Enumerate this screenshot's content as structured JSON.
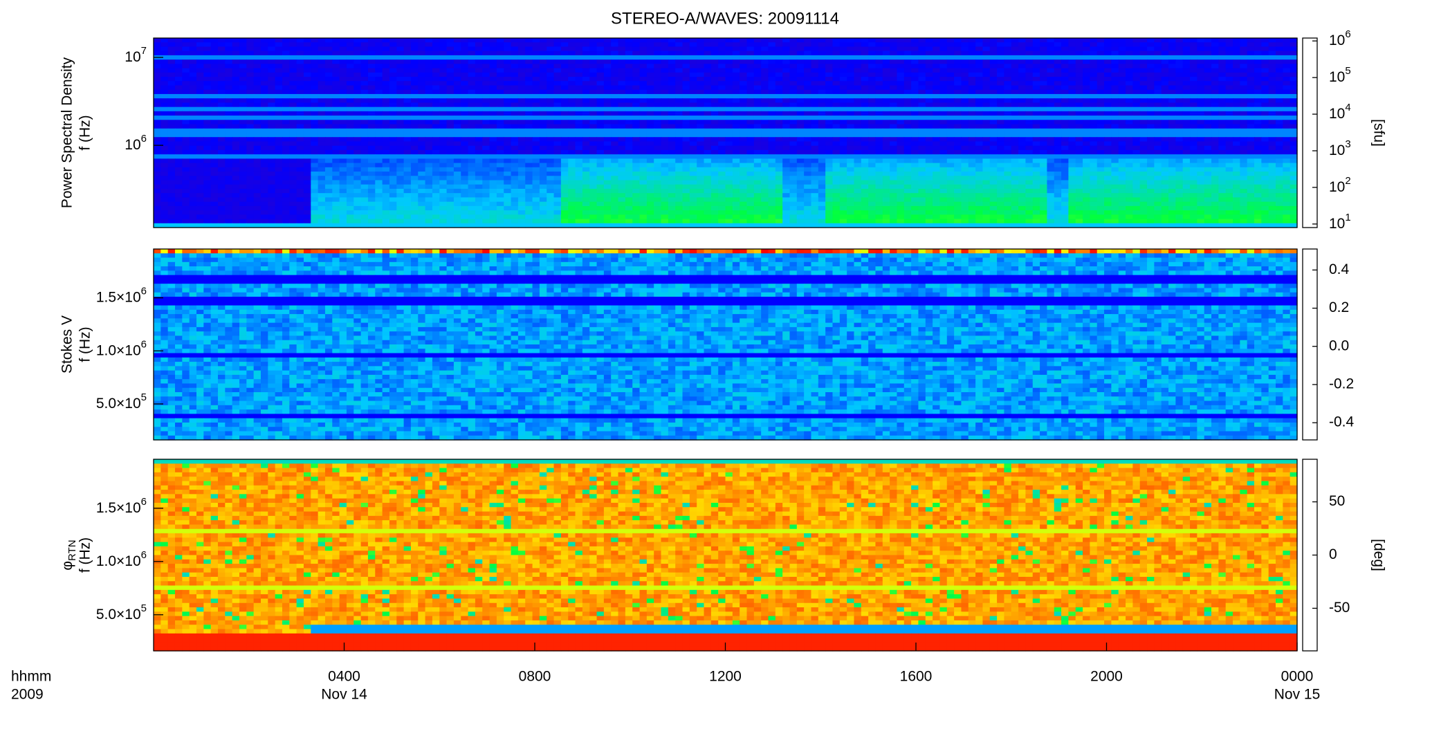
{
  "chart_data": [
    {
      "type": "heatmap",
      "title": "STEREO-A/WAVES: 20091114",
      "ylabel": [
        "Power Spectral Density",
        "f (Hz)"
      ],
      "ylog": true,
      "ylim": [
        116000,
        16600000
      ],
      "yticks": [
        {
          "value": 1000000,
          "label": "10^6"
        },
        {
          "value": 10000000,
          "label": "10^7"
        }
      ],
      "xlim": [
        0,
        24
      ],
      "colormap": "rainbow",
      "colorbar": {
        "label": "[sfu]",
        "log": true,
        "lim": [
          8,
          1200000
        ],
        "ticks": [
          {
            "value": 10,
            "label": "10^1"
          },
          {
            "value": 100,
            "label": "10^2"
          },
          {
            "value": 1000,
            "label": "10^3"
          },
          {
            "value": 10000,
            "label": "10^4"
          },
          {
            "value": 100000,
            "label": "10^5"
          },
          {
            "value": 1000000,
            "label": "10^6"
          }
        ]
      }
    },
    {
      "type": "heatmap",
      "ylabel": [
        "Stokes V",
        "f (Hz)"
      ],
      "ylim": [
        161000,
        1960000
      ],
      "yticks": [
        {
          "value": 500000,
          "label": "5.0×10^5"
        },
        {
          "value": 1000000,
          "label": "1.0×10^6"
        },
        {
          "value": 1500000,
          "label": "1.5×10^6"
        }
      ],
      "xlim": [
        0,
        24
      ],
      "colormap": "rainbow",
      "colorbar": {
        "lim": [
          -0.49,
          0.51
        ],
        "ticks": [
          -0.4,
          -0.2,
          {
            "value": 0,
            "label": "0.0"
          },
          0.2,
          0.4
        ]
      }
    },
    {
      "type": "heatmap",
      "ylabel": [
        "φ_RTN",
        "f (Hz)"
      ],
      "ylim": [
        161000,
        1960000
      ],
      "yticks": [
        {
          "value": 500000,
          "label": "5.0×10^5"
        },
        {
          "value": 1000000,
          "label": "1.0×10^6"
        },
        {
          "value": 1500000,
          "label": "1.5×10^6"
        }
      ],
      "xlim": [
        0,
        24
      ],
      "colormap": "rainbow",
      "colorbar": {
        "label": "[deg]",
        "lim": [
          -90,
          90
        ],
        "ticks": [
          -50,
          0,
          50
        ]
      },
      "xlabel": [
        "hhmm",
        "2009"
      ],
      "xticks": [
        {
          "value": 4,
          "label": "0400"
        },
        {
          "value": 8,
          "label": "0800"
        },
        {
          "value": 12,
          "label": "1200"
        },
        {
          "value": 16,
          "label": "1600"
        },
        {
          "value": 20,
          "label": "2000"
        },
        {
          "value": 24,
          "label": "0000"
        }
      ],
      "xtick_dates": [
        {
          "value": 4,
          "label": "Nov 14"
        },
        {
          "value": 24,
          "label": "Nov 15"
        }
      ]
    }
  ]
}
